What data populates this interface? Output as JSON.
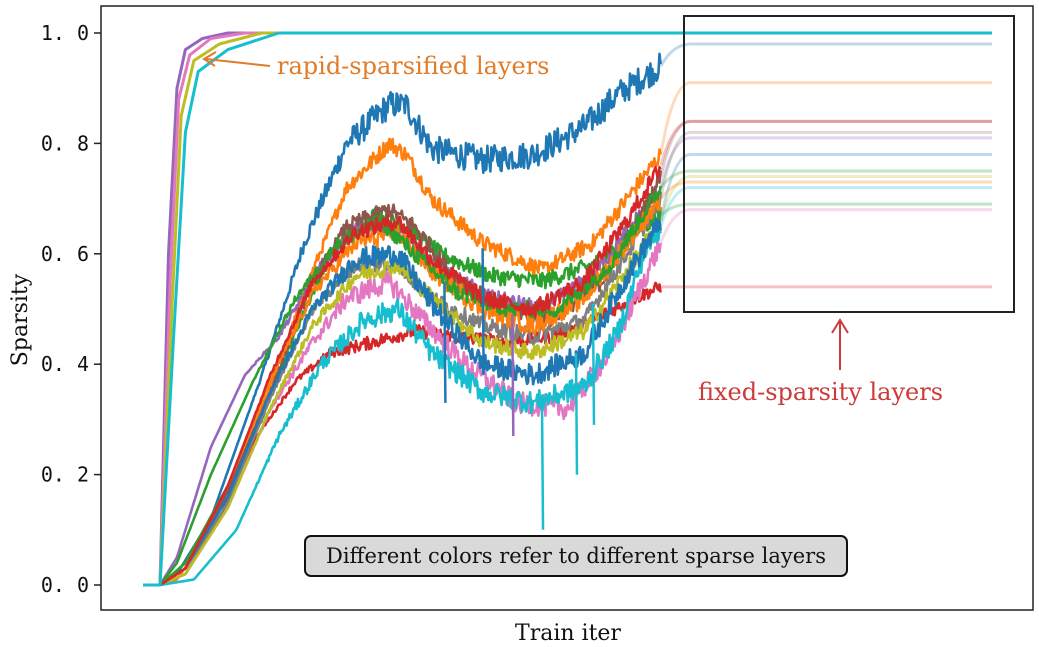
{
  "chart_data": {
    "type": "line",
    "title": "",
    "xlabel": "Train iter",
    "ylabel": "Sparsity",
    "xlim": [
      0,
      100
    ],
    "ylim": [
      0.0,
      1.0
    ],
    "yticks": [
      "0. 0",
      "0. 2",
      "0. 4",
      "0. 6",
      "0. 8",
      "1. 0"
    ],
    "ytick_values": [
      0.0,
      0.2,
      0.4,
      0.6,
      0.8,
      1.0
    ],
    "grid": false,
    "annotations": {
      "rapid": "rapid-sparsified layers",
      "fixed": "fixed-sparsity layers",
      "note": "Different colors refer to different sparse layers"
    },
    "fixed_region_start": 61,
    "rapid_series": [
      {
        "color": "#9467bd",
        "values": [
          [
            0,
            0
          ],
          [
            2,
            0
          ],
          [
            3,
            0.6
          ],
          [
            4,
            0.9
          ],
          [
            5,
            0.97
          ],
          [
            7,
            0.99
          ],
          [
            10,
            1
          ],
          [
            100,
            1
          ]
        ]
      },
      {
        "color": "#e377c2",
        "values": [
          [
            0,
            0
          ],
          [
            2,
            0
          ],
          [
            3.2,
            0.55
          ],
          [
            4.2,
            0.88
          ],
          [
            5.5,
            0.96
          ],
          [
            8,
            0.99
          ],
          [
            12,
            1
          ],
          [
            100,
            1
          ]
        ]
      },
      {
        "color": "#bcbd22",
        "values": [
          [
            0,
            0
          ],
          [
            2,
            0
          ],
          [
            3.4,
            0.5
          ],
          [
            4.5,
            0.85
          ],
          [
            6,
            0.95
          ],
          [
            9,
            0.98
          ],
          [
            14,
            1
          ],
          [
            100,
            1
          ]
        ]
      },
      {
        "color": "#17becf",
        "values": [
          [
            0,
            0
          ],
          [
            2,
            0
          ],
          [
            3.6,
            0.45
          ],
          [
            5,
            0.82
          ],
          [
            6.5,
            0.93
          ],
          [
            10,
            0.97
          ],
          [
            16,
            1
          ],
          [
            100,
            1
          ]
        ]
      }
    ],
    "series": [
      {
        "color": "#1f77b4",
        "noise": 0.025,
        "fixed": 0.98,
        "values": [
          [
            2,
            0
          ],
          [
            4,
            0.02
          ],
          [
            8,
            0.12
          ],
          [
            14,
            0.38
          ],
          [
            19,
            0.62
          ],
          [
            24,
            0.8
          ],
          [
            29,
            0.87
          ],
          [
            31,
            0.87
          ],
          [
            34,
            0.79
          ],
          [
            40,
            0.77
          ],
          [
            46,
            0.78
          ],
          [
            52,
            0.83
          ],
          [
            56,
            0.89
          ],
          [
            60,
            0.93
          ],
          [
            61,
            0.94
          ]
        ]
      },
      {
        "color": "#ff7f0e",
        "noise": 0.015,
        "fixed": 0.91,
        "values": [
          [
            2,
            0
          ],
          [
            4,
            0.01
          ],
          [
            8,
            0.1
          ],
          [
            14,
            0.32
          ],
          [
            20,
            0.57
          ],
          [
            24,
            0.72
          ],
          [
            29,
            0.8
          ],
          [
            31,
            0.78
          ],
          [
            34,
            0.7
          ],
          [
            40,
            0.62
          ],
          [
            47,
            0.57
          ],
          [
            53,
            0.62
          ],
          [
            58,
            0.72
          ],
          [
            61,
            0.78
          ]
        ]
      },
      {
        "color": "#2ca02c",
        "noise": 0.015,
        "fixed": 0.69,
        "values": [
          [
            2,
            0
          ],
          [
            5,
            0.04
          ],
          [
            10,
            0.18
          ],
          [
            14,
            0.3
          ],
          [
            18,
            0.46
          ],
          [
            22,
            0.6
          ],
          [
            27,
            0.67
          ],
          [
            31,
            0.65
          ],
          [
            35,
            0.6
          ],
          [
            41,
            0.56
          ],
          [
            47,
            0.55
          ],
          [
            53,
            0.58
          ],
          [
            58,
            0.64
          ],
          [
            61,
            0.67
          ]
        ]
      },
      {
        "color": "#d62728",
        "noise": 0.012,
        "fixed": 0.54,
        "values": [
          [
            2,
            0
          ],
          [
            5,
            0.02
          ],
          [
            9,
            0.12
          ],
          [
            13,
            0.26
          ],
          [
            18,
            0.37
          ],
          [
            22,
            0.42
          ],
          [
            27,
            0.44
          ],
          [
            32,
            0.46
          ],
          [
            37,
            0.45
          ],
          [
            43,
            0.44
          ],
          [
            48,
            0.45
          ],
          [
            53,
            0.48
          ],
          [
            58,
            0.52
          ],
          [
            61,
            0.54
          ]
        ]
      },
      {
        "color": "#9467bd",
        "noise": 0.015,
        "fixed": 0.81,
        "values": [
          [
            2,
            0
          ],
          [
            4,
            0.05
          ],
          [
            8,
            0.25
          ],
          [
            12,
            0.38
          ],
          [
            16,
            0.45
          ],
          [
            21,
            0.58
          ],
          [
            26,
            0.66
          ],
          [
            30,
            0.64
          ],
          [
            35,
            0.57
          ],
          [
            41,
            0.52
          ],
          [
            47,
            0.5
          ],
          [
            53,
            0.56
          ],
          [
            58,
            0.66
          ],
          [
            61,
            0.72
          ]
        ]
      },
      {
        "color": "#8c564b",
        "noise": 0.015,
        "fixed": 0.84,
        "values": [
          [
            2,
            0
          ],
          [
            5,
            0.03
          ],
          [
            10,
            0.17
          ],
          [
            15,
            0.35
          ],
          [
            20,
            0.55
          ],
          [
            24,
            0.65
          ],
          [
            29,
            0.68
          ],
          [
            32,
            0.65
          ],
          [
            36,
            0.57
          ],
          [
            42,
            0.5
          ],
          [
            48,
            0.48
          ],
          [
            54,
            0.55
          ],
          [
            58,
            0.65
          ],
          [
            61,
            0.74
          ]
        ]
      },
      {
        "color": "#e377c2",
        "noise": 0.02,
        "fixed": 0.68,
        "values": [
          [
            2,
            0
          ],
          [
            5,
            0.02
          ],
          [
            10,
            0.14
          ],
          [
            15,
            0.32
          ],
          [
            20,
            0.44
          ],
          [
            24,
            0.52
          ],
          [
            29,
            0.55
          ],
          [
            33,
            0.48
          ],
          [
            38,
            0.4
          ],
          [
            44,
            0.33
          ],
          [
            50,
            0.32
          ],
          [
            55,
            0.42
          ],
          [
            58,
            0.52
          ],
          [
            61,
            0.62
          ]
        ]
      },
      {
        "color": "#7f7f7f",
        "noise": 0.015,
        "fixed": 0.82,
        "values": [
          [
            2,
            0
          ],
          [
            5,
            0.02
          ],
          [
            10,
            0.15
          ],
          [
            15,
            0.34
          ],
          [
            20,
            0.5
          ],
          [
            25,
            0.58
          ],
          [
            30,
            0.58
          ],
          [
            34,
            0.52
          ],
          [
            40,
            0.47
          ],
          [
            46,
            0.45
          ],
          [
            52,
            0.48
          ],
          [
            57,
            0.6
          ],
          [
            61,
            0.7
          ]
        ]
      },
      {
        "color": "#bcbd22",
        "noise": 0.015,
        "fixed": 0.74,
        "values": [
          [
            2,
            0
          ],
          [
            5,
            0.02
          ],
          [
            10,
            0.14
          ],
          [
            15,
            0.32
          ],
          [
            20,
            0.47
          ],
          [
            25,
            0.56
          ],
          [
            30,
            0.58
          ],
          [
            34,
            0.52
          ],
          [
            40,
            0.44
          ],
          [
            46,
            0.42
          ],
          [
            52,
            0.46
          ],
          [
            57,
            0.57
          ],
          [
            61,
            0.66
          ]
        ]
      },
      {
        "color": "#17becf",
        "noise": 0.02,
        "fixed": 0.72,
        "values": [
          [
            2,
            0
          ],
          [
            6,
            0.01
          ],
          [
            11,
            0.1
          ],
          [
            16,
            0.27
          ],
          [
            21,
            0.4
          ],
          [
            26,
            0.48
          ],
          [
            30,
            0.5
          ],
          [
            34,
            0.42
          ],
          [
            40,
            0.35
          ],
          [
            46,
            0.33
          ],
          [
            52,
            0.36
          ],
          [
            56,
            0.46
          ],
          [
            59,
            0.6
          ],
          [
            61,
            0.65
          ]
        ]
      },
      {
        "color": "#1f77b4",
        "noise": 0.02,
        "fixed": 0.78,
        "values": [
          [
            2,
            0
          ],
          [
            5,
            0.03
          ],
          [
            10,
            0.16
          ],
          [
            15,
            0.35
          ],
          [
            20,
            0.5
          ],
          [
            25,
            0.59
          ],
          [
            30,
            0.6
          ],
          [
            34,
            0.51
          ],
          [
            40,
            0.4
          ],
          [
            46,
            0.38
          ],
          [
            52,
            0.42
          ],
          [
            57,
            0.56
          ],
          [
            61,
            0.66
          ]
        ]
      },
      {
        "color": "#ff7f0e",
        "noise": 0.018,
        "fixed": 0.73,
        "values": [
          [
            2,
            0
          ],
          [
            5,
            0.03
          ],
          [
            10,
            0.18
          ],
          [
            15,
            0.37
          ],
          [
            20,
            0.53
          ],
          [
            25,
            0.62
          ],
          [
            30,
            0.64
          ],
          [
            34,
            0.57
          ],
          [
            40,
            0.5
          ],
          [
            46,
            0.47
          ],
          [
            52,
            0.52
          ],
          [
            57,
            0.62
          ],
          [
            61,
            0.7
          ]
        ]
      },
      {
        "color": "#2ca02c",
        "noise": 0.015,
        "fixed": 0.75,
        "values": [
          [
            2,
            0
          ],
          [
            4,
            0.04
          ],
          [
            8,
            0.2
          ],
          [
            13,
            0.37
          ],
          [
            18,
            0.52
          ],
          [
            23,
            0.62
          ],
          [
            28,
            0.66
          ],
          [
            32,
            0.6
          ],
          [
            37,
            0.53
          ],
          [
            43,
            0.5
          ],
          [
            49,
            0.5
          ],
          [
            55,
            0.58
          ],
          [
            61,
            0.72
          ]
        ]
      },
      {
        "color": "#d62728",
        "noise": 0.015,
        "fixed": 0.84,
        "values": [
          [
            2,
            0
          ],
          [
            5,
            0.03
          ],
          [
            10,
            0.18
          ],
          [
            15,
            0.38
          ],
          [
            20,
            0.55
          ],
          [
            25,
            0.64
          ],
          [
            30,
            0.66
          ],
          [
            34,
            0.59
          ],
          [
            40,
            0.52
          ],
          [
            46,
            0.5
          ],
          [
            52,
            0.55
          ],
          [
            57,
            0.66
          ],
          [
            61,
            0.76
          ]
        ]
      }
    ],
    "spikes": [
      {
        "x": 35.5,
        "y": 0.33
      },
      {
        "x": 40,
        "y": 0.39
      },
      {
        "x": 43.5,
        "y": 0.27
      },
      {
        "x": 47,
        "y": 0.1
      },
      {
        "x": 51,
        "y": 0.2
      },
      {
        "x": 53,
        "y": 0.29
      }
    ]
  }
}
